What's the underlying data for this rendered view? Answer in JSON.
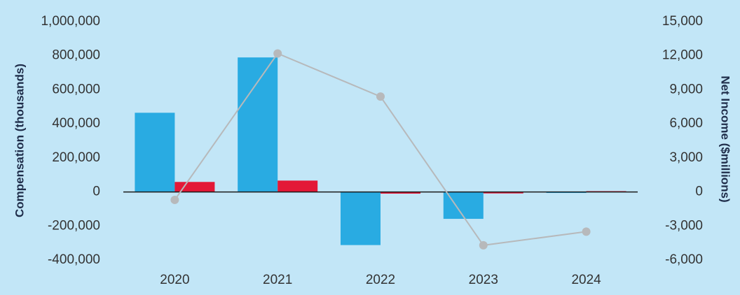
{
  "chart_data": {
    "type": "bar",
    "categories": [
      "2020",
      "2021",
      "2022",
      "2023",
      "2024"
    ],
    "series": [
      {
        "values": [
          465000,
          790000,
          -312000,
          -158000,
          -6000
        ],
        "color": "#29abe2",
        "axis": "left"
      },
      {
        "values": [
          880,
          1000,
          -150,
          -130,
          70
        ],
        "color": "#e31837",
        "axis": "right"
      },
      {
        "values": [
          -700,
          12200,
          8400,
          -4700,
          -3500
        ],
        "color": "#b7b9bb",
        "axis": "right",
        "mark": "line"
      }
    ],
    "ylabel": "Compensation (thousands)",
    "y2label": "Net Income ($millions)",
    "ylim": [
      -400000,
      1000000
    ],
    "y2lim": [
      -6000,
      15000
    ],
    "yticks": [
      "1,000,000",
      "800,000",
      "600,000",
      "400,000",
      "200,000",
      "0",
      "-200,000",
      "-400,000"
    ],
    "y2ticks": [
      "15,000",
      "12,000",
      "9,000",
      "6,000",
      "3,000",
      "0",
      "-3,000",
      "-6,000"
    ],
    "grid": false,
    "background": "#c2e6f7",
    "zero_line_color": "#1a1a1a"
  }
}
